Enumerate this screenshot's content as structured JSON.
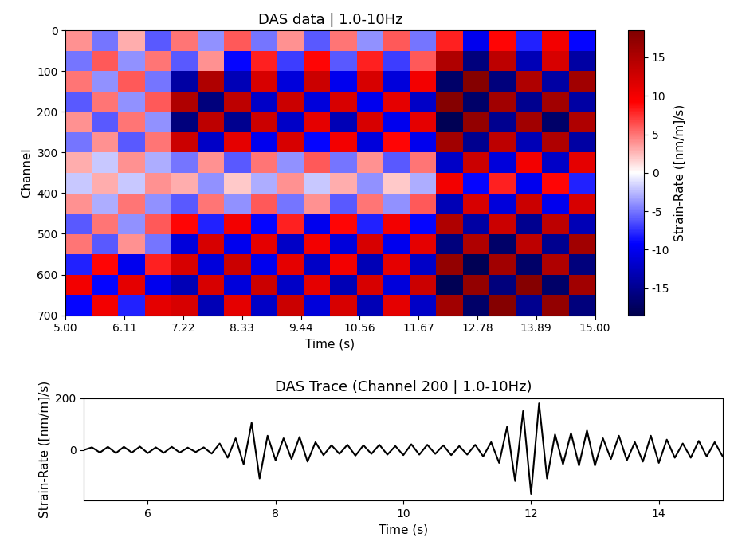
{
  "chart_data": [
    {
      "type": "heatmap",
      "title": "DAS data | 1.0-10Hz",
      "x_label": "Time (s)",
      "y_label": "Channel",
      "xlim": [
        5.0,
        15.0
      ],
      "ylim": [
        700,
        0
      ],
      "xticks": [
        {
          "value": 5.0,
          "label": "5.00"
        },
        {
          "value": 6.111,
          "label": "6.11"
        },
        {
          "value": 7.222,
          "label": "7.22"
        },
        {
          "value": 8.333,
          "label": "8.33"
        },
        {
          "value": 9.444,
          "label": "9.44"
        },
        {
          "value": 10.556,
          "label": "10.56"
        },
        {
          "value": 11.667,
          "label": "11.67"
        },
        {
          "value": 12.778,
          "label": "12.78"
        },
        {
          "value": 13.889,
          "label": "13.89"
        },
        {
          "value": 15.0,
          "label": "15.00"
        }
      ],
      "yticks": [
        0,
        100,
        200,
        300,
        400,
        500,
        600,
        700
      ],
      "cells": [
        [
          4,
          -5,
          3,
          -6,
          5,
          -4,
          6,
          -5,
          4,
          -6,
          5,
          -4,
          6,
          -5,
          8,
          -10,
          9,
          -8,
          10,
          -9
        ],
        [
          -5,
          6,
          -4,
          5,
          -6,
          4,
          -9,
          8,
          -7,
          9,
          -6,
          8,
          -7,
          6,
          15,
          -16,
          14,
          -13,
          12,
          -14
        ],
        [
          5,
          -4,
          6,
          -5,
          -14,
          15,
          -13,
          12,
          -11,
          13,
          -10,
          12,
          -11,
          10,
          -17,
          18,
          -16,
          15,
          -14,
          16
        ],
        [
          -6,
          5,
          -4,
          6,
          15,
          -16,
          14,
          -12,
          13,
          -11,
          12,
          -10,
          11,
          -12,
          18,
          -17,
          16,
          -15,
          16,
          -14
        ],
        [
          4,
          -6,
          5,
          -4,
          -16,
          14,
          -15,
          13,
          -12,
          11,
          -13,
          12,
          -10,
          11,
          -18,
          17,
          -15,
          16,
          -17,
          15
        ],
        [
          -5,
          4,
          -6,
          5,
          13,
          -12,
          11,
          -10,
          12,
          -9,
          10,
          -11,
          9,
          -10,
          16,
          -15,
          14,
          -13,
          15,
          -14
        ],
        [
          3,
          -2,
          4,
          -3,
          -5,
          4,
          -6,
          5,
          -4,
          6,
          -5,
          4,
          -6,
          5,
          -12,
          13,
          -11,
          10,
          -12,
          11
        ],
        [
          -2,
          3,
          -2,
          4,
          3,
          -4,
          2,
          -3,
          4,
          -2,
          3,
          -4,
          2,
          -3,
          10,
          -9,
          8,
          -10,
          9,
          -8
        ],
        [
          4,
          -3,
          5,
          -4,
          -6,
          5,
          -4,
          6,
          -5,
          4,
          -6,
          5,
          -4,
          6,
          -13,
          12,
          -11,
          13,
          -10,
          12
        ],
        [
          -6,
          5,
          -4,
          6,
          9,
          -8,
          10,
          -9,
          8,
          -10,
          9,
          -8,
          10,
          -9,
          15,
          -14,
          13,
          -15,
          14,
          -13
        ],
        [
          5,
          -6,
          4,
          -5,
          -11,
          12,
          -10,
          11,
          -12,
          10,
          -11,
          12,
          -10,
          11,
          -16,
          15,
          -17,
          14,
          -15,
          16
        ],
        [
          -8,
          9,
          -10,
          8,
          12,
          -11,
          13,
          -10,
          11,
          -12,
          10,
          -13,
          11,
          -12,
          17,
          -18,
          16,
          -17,
          15,
          -16
        ],
        [
          10,
          -9,
          11,
          -10,
          -13,
          12,
          -11,
          13,
          -12,
          11,
          -13,
          12,
          -11,
          13,
          -18,
          17,
          -16,
          18,
          -17,
          16
        ],
        [
          -9,
          10,
          -8,
          11,
          12,
          -13,
          11,
          -12,
          13,
          -11,
          12,
          -13,
          11,
          -12,
          16,
          -17,
          18,
          -15,
          17,
          -16
        ]
      ],
      "colorbar": {
        "label": "Strain-Rate ([nm/m]/s)",
        "range": [
          -18.5,
          18.5
        ],
        "ticks": [
          -15,
          -10,
          -5,
          0,
          5,
          10,
          15
        ]
      }
    },
    {
      "type": "line",
      "title": "DAS Trace (Channel 200 | 1.0-10Hz)",
      "x_label": "Time (s)",
      "y_label": "Strain-Rate ([nm/m]/s)",
      "color": "#000000",
      "xlim": [
        5.0,
        15.0
      ],
      "ylim": [
        -195,
        200
      ],
      "xticks": [
        6,
        8,
        10,
        12,
        14
      ],
      "yticks": [
        0,
        200
      ],
      "x": [
        5.0,
        5.125,
        5.25,
        5.375,
        5.5,
        5.625,
        5.75,
        5.875,
        6.0,
        6.125,
        6.25,
        6.375,
        6.5,
        6.625,
        6.75,
        6.875,
        7.0,
        7.125,
        7.25,
        7.375,
        7.5,
        7.625,
        7.75,
        7.875,
        8.0,
        8.125,
        8.25,
        8.375,
        8.5,
        8.625,
        8.75,
        8.875,
        9.0,
        9.125,
        9.25,
        9.375,
        9.5,
        9.625,
        9.75,
        9.875,
        10.0,
        10.125,
        10.25,
        10.375,
        10.5,
        10.625,
        10.75,
        10.875,
        11.0,
        11.125,
        11.25,
        11.375,
        11.5,
        11.625,
        11.75,
        11.875,
        12.0,
        12.125,
        12.25,
        12.375,
        12.5,
        12.625,
        12.75,
        12.875,
        13.0,
        13.125,
        13.25,
        13.375,
        13.5,
        13.625,
        13.75,
        13.875,
        14.0,
        14.125,
        14.25,
        14.375,
        14.5,
        14.625,
        14.75,
        14.875,
        15.0
      ],
      "values": [
        0,
        10,
        -10,
        12,
        -12,
        12,
        -10,
        13,
        -12,
        10,
        -11,
        12,
        -10,
        9,
        -8,
        10,
        -14,
        25,
        -30,
        45,
        -55,
        105,
        -110,
        55,
        -40,
        45,
        -35,
        50,
        -45,
        30,
        -20,
        18,
        -15,
        20,
        -22,
        18,
        -15,
        20,
        -18,
        15,
        -20,
        22,
        -18,
        20,
        -15,
        18,
        -20,
        15,
        -18,
        20,
        -25,
        30,
        -50,
        90,
        -120,
        150,
        -170,
        180,
        -110,
        60,
        -55,
        65,
        -60,
        75,
        -60,
        45,
        -35,
        55,
        -40,
        30,
        -45,
        55,
        -50,
        40,
        -30,
        25,
        -30,
        35,
        -25,
        30,
        -25
      ]
    }
  ]
}
